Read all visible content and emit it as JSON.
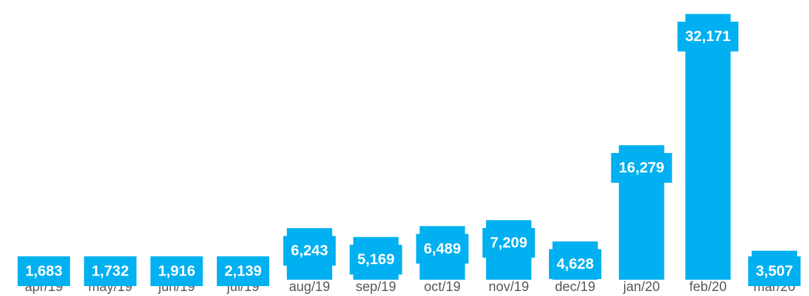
{
  "chart_data": {
    "type": "bar",
    "categories": [
      "apr/19",
      "may/19",
      "jun/19",
      "jul/19",
      "aug/19",
      "sep/19",
      "oct/19",
      "nov/19",
      "dec/19",
      "jan/20",
      "feb/20",
      "mar/20"
    ],
    "values": [
      1683,
      1732,
      1916,
      2139,
      6243,
      5169,
      6489,
      7209,
      4628,
      16279,
      32171,
      3507
    ],
    "value_labels": [
      "1,683",
      "1,732",
      "1,916",
      "2,139",
      "6,243",
      "5,169",
      "6,489",
      "7,209",
      "4,628",
      "16,279",
      "32,171",
      "3,507"
    ],
    "color": "#00b0f0",
    "ylim": [
      0,
      33000
    ]
  }
}
